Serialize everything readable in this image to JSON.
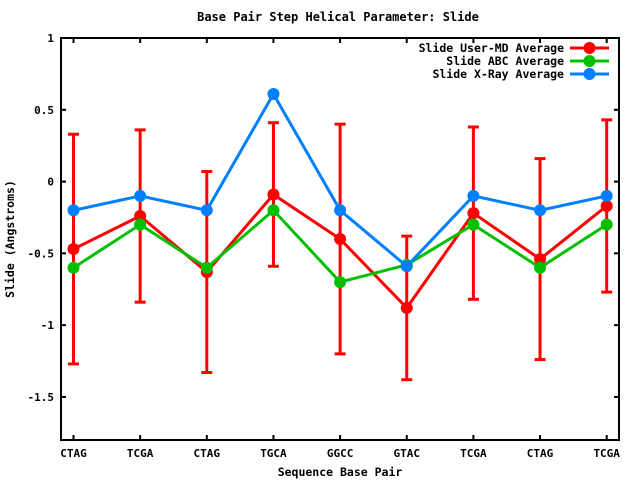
{
  "window": {
    "background": "#ffffff",
    "foreground": "#000000"
  },
  "chart_data": {
    "type": "line",
    "title": "Base Pair Step Helical Parameter: Slide",
    "xlabel": "Sequence Base Pair",
    "ylabel": "Slide (Angstroms)",
    "categories": [
      "CTAG",
      "TCGA",
      "CTAG",
      "TGCA",
      "GGCC",
      "GTAC",
      "TCGA",
      "CTAG",
      "TCGA"
    ],
    "y_ticks": [
      {
        "value": 1,
        "label": "1"
      },
      {
        "value": 0.5,
        "label": "0.5"
      },
      {
        "value": 0,
        "label": "0"
      },
      {
        "value": -0.5,
        "label": "-0.5"
      },
      {
        "value": -1,
        "label": "-1"
      },
      {
        "value": -1.5,
        "label": "-1.5"
      }
    ],
    "ylim": [
      -1.8,
      1
    ],
    "grid": false,
    "legend_position": "top-right-inside",
    "series": [
      {
        "name": "Slide User-MD Average",
        "color": "#ff0000",
        "marker": "circle",
        "values": [
          -0.47,
          -0.24,
          -0.63,
          -0.09,
          -0.4,
          -0.88,
          -0.22,
          -0.54,
          -0.17
        ],
        "yerr": [
          0.8,
          0.6,
          0.7,
          0.5,
          0.8,
          0.5,
          0.6,
          0.7,
          0.6
        ]
      },
      {
        "name": "Slide ABC Average",
        "color": "#00c000",
        "marker": "circle",
        "values": [
          -0.6,
          -0.3,
          -0.6,
          -0.2,
          -0.7,
          -0.58,
          -0.3,
          -0.6,
          -0.3
        ]
      },
      {
        "name": "Slide X-Ray Average",
        "color": "#0080ff",
        "marker": "circle",
        "values": [
          -0.2,
          -0.1,
          -0.2,
          0.61,
          -0.2,
          -0.59,
          -0.1,
          -0.2,
          -0.1
        ]
      }
    ]
  }
}
